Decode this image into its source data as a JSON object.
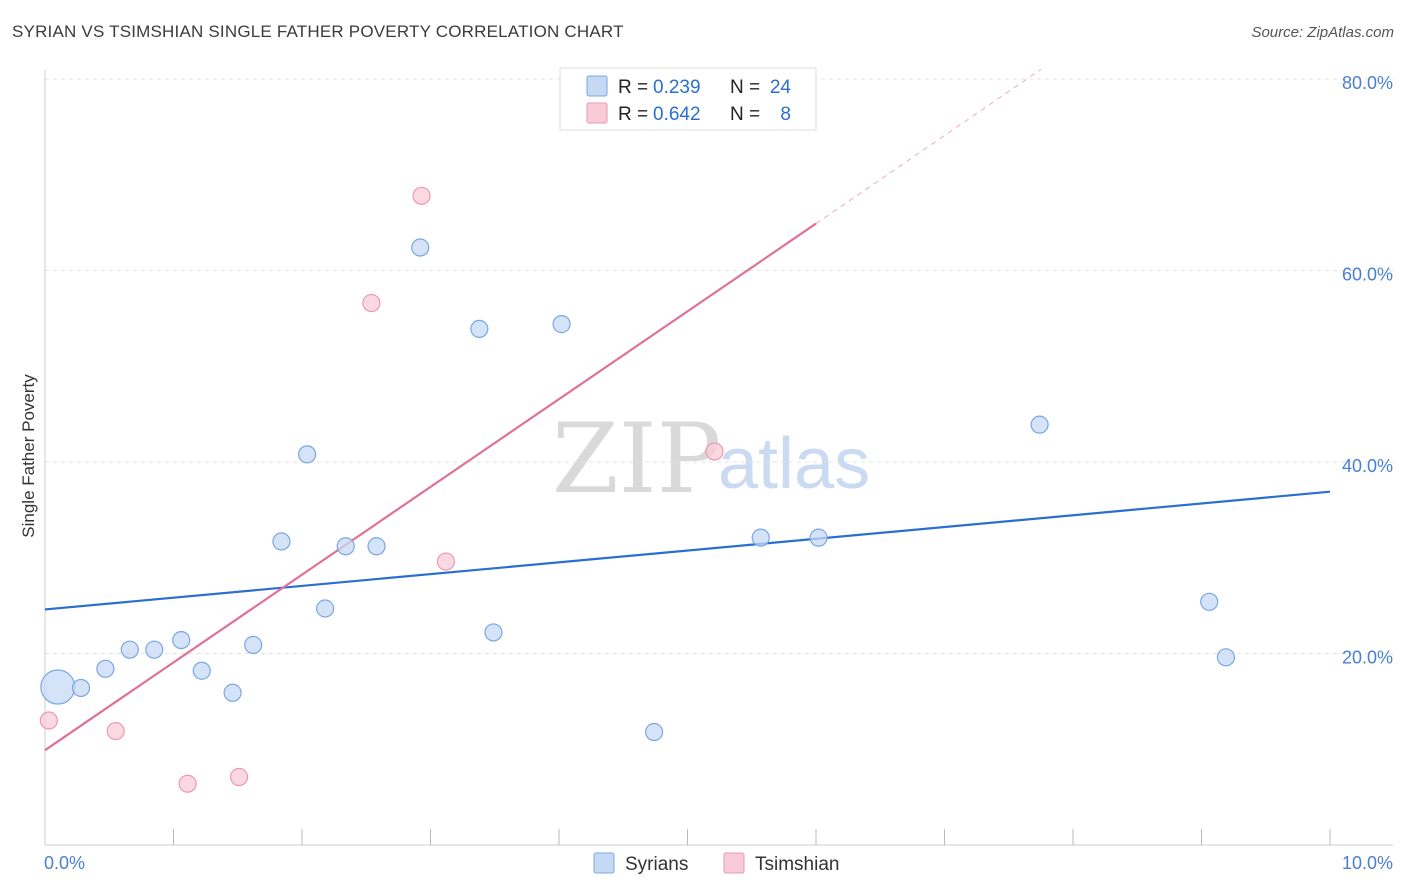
{
  "title": "SYRIAN VS TSIMSHIAN SINGLE FATHER POVERTY CORRELATION CHART",
  "source": "Source: ZipAtlas.com",
  "watermark": {
    "zip": "ZIP",
    "atlas": "atlas"
  },
  "colors": {
    "syrians_fill": "#c5d9f4",
    "syrians_stroke": "#7ba7e0",
    "syrians_line": "#2a6fcf",
    "tsimshian_fill": "#f9cbd8",
    "tsimshian_stroke": "#e99ab2",
    "tsimshian_line": "#e07099",
    "value_text": "#2a6fcf",
    "label_text": "#222222"
  },
  "legend": {
    "rows": [
      {
        "r_label": "R =",
        "r_value": "0.239",
        "n_label": "N =",
        "n_value": "24"
      },
      {
        "r_label": "R =",
        "r_value": "0.642",
        "n_label": "N =",
        "n_value": "8"
      }
    ]
  },
  "chart_data": {
    "type": "scatter",
    "title": "SYRIAN VS TSIMSHIAN SINGLE FATHER POVERTY CORRELATION CHART",
    "xlabel": "",
    "ylabel": "Single Father Poverty",
    "xlim": [
      0,
      10
    ],
    "ylim": [
      0,
      80
    ],
    "x_tick_labels": [
      "0.0%",
      "10.0%"
    ],
    "y_ticks": [
      20,
      40,
      60,
      80
    ],
    "y_tick_labels": [
      "20.0%",
      "40.0%",
      "60.0%",
      "80.0%"
    ],
    "grid": true,
    "legend_position": "top-center",
    "series": [
      {
        "name": "Syrians",
        "points": [
          {
            "x": 0.1,
            "y": 16.5,
            "big": true
          },
          {
            "x": 0.28,
            "y": 16.4
          },
          {
            "x": 0.47,
            "y": 18.4
          },
          {
            "x": 0.66,
            "y": 20.4
          },
          {
            "x": 0.85,
            "y": 20.4
          },
          {
            "x": 1.06,
            "y": 21.4
          },
          {
            "x": 1.22,
            "y": 18.2
          },
          {
            "x": 1.46,
            "y": 15.9
          },
          {
            "x": 1.62,
            "y": 20.9
          },
          {
            "x": 1.84,
            "y": 31.7
          },
          {
            "x": 2.04,
            "y": 40.8
          },
          {
            "x": 2.18,
            "y": 24.7
          },
          {
            "x": 2.34,
            "y": 31.2
          },
          {
            "x": 2.58,
            "y": 31.2
          },
          {
            "x": 2.92,
            "y": 62.4
          },
          {
            "x": 3.38,
            "y": 53.9
          },
          {
            "x": 3.49,
            "y": 22.2
          },
          {
            "x": 4.02,
            "y": 54.4
          },
          {
            "x": 4.74,
            "y": 11.8
          },
          {
            "x": 5.57,
            "y": 32.1
          },
          {
            "x": 6.02,
            "y": 32.1
          },
          {
            "x": 7.74,
            "y": 43.9
          },
          {
            "x": 9.06,
            "y": 25.4
          },
          {
            "x": 9.19,
            "y": 19.6
          }
        ],
        "trend": {
          "x1": 0.0,
          "y1": 24.6,
          "x2": 10.0,
          "y2": 36.9
        }
      },
      {
        "name": "Tsimshian",
        "points": [
          {
            "x": 0.03,
            "y": 13.0
          },
          {
            "x": 0.55,
            "y": 11.9
          },
          {
            "x": 1.11,
            "y": 6.4
          },
          {
            "x": 1.51,
            "y": 7.1
          },
          {
            "x": 2.54,
            "y": 56.6
          },
          {
            "x": 2.93,
            "y": 67.8
          },
          {
            "x": 3.12,
            "y": 29.6
          },
          {
            "x": 5.21,
            "y": 41.1
          }
        ],
        "trend": {
          "x1": 0.0,
          "y1": 9.9,
          "x2": 6.0,
          "y2": 64.9
        },
        "trend_dashed": {
          "x1": 6.0,
          "y1": 64.9,
          "x2": 7.75,
          "y2": 81.0
        }
      }
    ]
  },
  "bottom_legend": [
    {
      "label": "Syrians"
    },
    {
      "label": "Tsimshian"
    }
  ]
}
